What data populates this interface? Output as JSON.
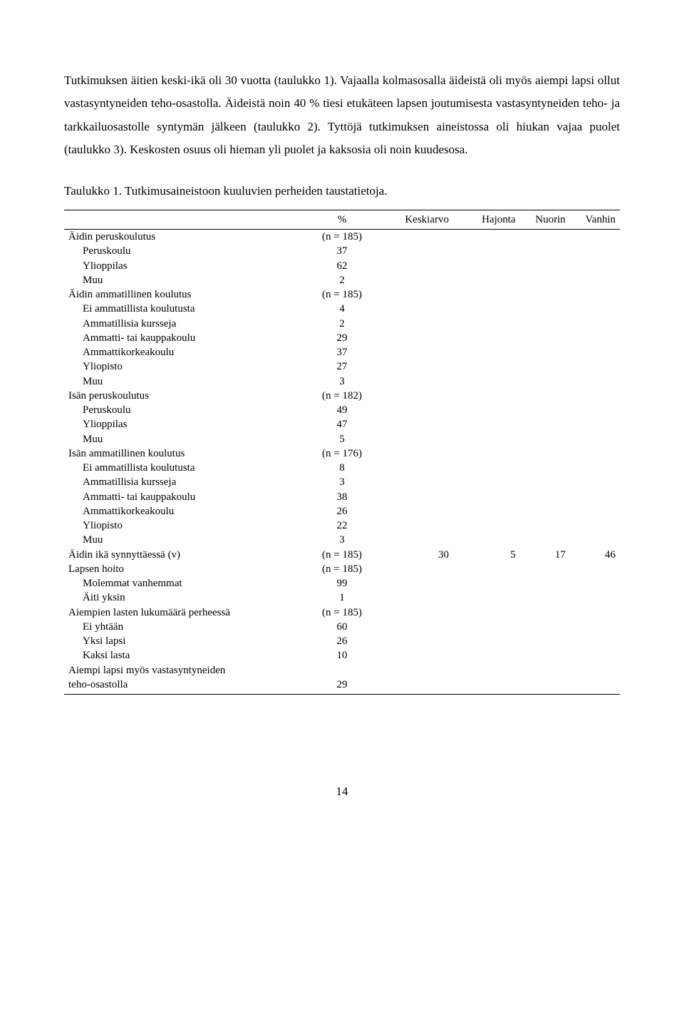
{
  "paragraph": "Tutkimuksen äitien keski-ikä oli 30 vuotta (taulukko 1). Vajaalla kolmasosalla äideistä oli myös aiempi lapsi ollut vastasyntyneiden teho-osastolla. Äideistä noin 40 % tiesi etukäteen lapsen joutumisesta vastasyntyneiden teho- ja tarkkailuosastolle syntymän jälkeen (taulukko 2). Tyttöjä tutkimuksen aineistossa oli hiukan vajaa puolet (taulukko 3). Keskosten osuus oli hieman yli puolet ja kaksosia oli noin kuudesosa.",
  "caption": "Taulukko 1. Tutkimusaineistoon kuuluvien perheiden taustatietoja.",
  "headers": {
    "blank": "",
    "pct": "%",
    "mean": "Keskiarvo",
    "sd": "Hajonta",
    "min": "Nuorin",
    "max": "Vanhin"
  },
  "rows": [
    {
      "label": "Äidin peruskoulutus",
      "indent": 0,
      "pct": "(n = 185)"
    },
    {
      "label": "Peruskoulu",
      "indent": 1,
      "pct": "37"
    },
    {
      "label": "Ylioppilas",
      "indent": 1,
      "pct": "62"
    },
    {
      "label": "Muu",
      "indent": 1,
      "pct": "2"
    },
    {
      "label": "Äidin ammatillinen koulutus",
      "indent": 0,
      "pct": "(n = 185)"
    },
    {
      "label": "Ei ammatillista koulutusta",
      "indent": 1,
      "pct": "4"
    },
    {
      "label": "Ammatillisia kursseja",
      "indent": 1,
      "pct": "2"
    },
    {
      "label": "Ammatti- tai kauppakoulu",
      "indent": 1,
      "pct": "29"
    },
    {
      "label": "Ammattikorkeakoulu",
      "indent": 1,
      "pct": "37"
    },
    {
      "label": "Yliopisto",
      "indent": 1,
      "pct": "27"
    },
    {
      "label": "Muu",
      "indent": 1,
      "pct": "3"
    },
    {
      "label": "Isän peruskoulutus",
      "indent": 0,
      "pct": "(n = 182)"
    },
    {
      "label": "Peruskoulu",
      "indent": 1,
      "pct": "49"
    },
    {
      "label": "Ylioppilas",
      "indent": 1,
      "pct": "47"
    },
    {
      "label": "Muu",
      "indent": 1,
      "pct": "5"
    },
    {
      "label": "Isän ammatillinen koulutus",
      "indent": 0,
      "pct": "(n = 176)"
    },
    {
      "label": "Ei ammatillista koulutusta",
      "indent": 1,
      "pct": "8"
    },
    {
      "label": "Ammatillisia kursseja",
      "indent": 1,
      "pct": "3"
    },
    {
      "label": "Ammatti- tai kauppakoulu",
      "indent": 1,
      "pct": "38"
    },
    {
      "label": "Ammattikorkeakoulu",
      "indent": 1,
      "pct": "26"
    },
    {
      "label": "Yliopisto",
      "indent": 1,
      "pct": "22"
    },
    {
      "label": "Muu",
      "indent": 1,
      "pct": "3"
    },
    {
      "label": "Äidin ikä synnyttäessä (v)",
      "indent": 0,
      "pct": "(n = 185)",
      "mean": "30",
      "sd": "5",
      "min": "17",
      "max": "46"
    },
    {
      "label": "Lapsen hoito",
      "indent": 0,
      "pct": "(n = 185)"
    },
    {
      "label": "Molemmat vanhemmat",
      "indent": 1,
      "pct": "99"
    },
    {
      "label": "Äiti yksin",
      "indent": 1,
      "pct": "1"
    },
    {
      "label": "Aiempien lasten lukumäärä perheessä",
      "indent": 0,
      "pct": "(n = 185)"
    },
    {
      "label": "Ei yhtään",
      "indent": 1,
      "pct": "60"
    },
    {
      "label": "Yksi lapsi",
      "indent": 1,
      "pct": "26"
    },
    {
      "label": "Kaksi lasta",
      "indent": 1,
      "pct": "10"
    },
    {
      "label": "Aiempi lapsi myös vastasyntyneiden",
      "indent": 0,
      "pct": ""
    },
    {
      "label": "teho-osastolla",
      "indent": 0,
      "pct": "29"
    }
  ],
  "page_number": "14",
  "style": {
    "body_font": "Times New Roman",
    "body_fontsize_pt": 12,
    "table_fontsize_pt": 11,
    "line_height": 1.9,
    "background": "#ffffff",
    "text_color": "#000000",
    "rule_color": "#000000",
    "col_widths_pct": [
      42,
      16,
      12,
      12,
      9,
      9
    ]
  }
}
